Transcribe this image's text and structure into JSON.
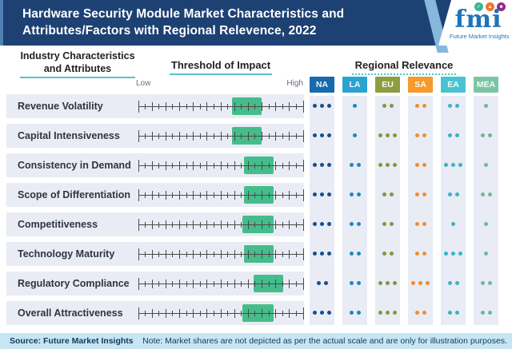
{
  "header": {
    "title": "Hardware Security Module Market Characteristics and Attributes/Factors with Regional Relevence, 2022",
    "logo": {
      "brand": "fmi",
      "tagline": "Future Market Insights"
    }
  },
  "columns": {
    "attributes_header": "Industry Characteristics and Attributes",
    "threshold_header": "Threshold of Impact",
    "regional_header": "Regional Relevance",
    "low_label": "Low",
    "high_label": "High"
  },
  "chart_data": {
    "type": "table",
    "title": "Hardware Security Module Market Characteristics and Attributes/Factors with Regional Relevence, 2022",
    "impact_axis": {
      "low_label": "Low",
      "high_label": "High",
      "range": [
        0,
        1
      ]
    },
    "relevance_scale": "dot count 1 (low) to 3 (high)",
    "regions": [
      {
        "code": "NA",
        "tag_color": "#166aad",
        "dot_color": "#15508d"
      },
      {
        "code": "LA",
        "tag_color": "#2ba3d1",
        "dot_color": "#1f86c2"
      },
      {
        "code": "EU",
        "tag_color": "#8c9e3f",
        "dot_color": "#85963c"
      },
      {
        "code": "SA",
        "tag_color": "#f59a2d",
        "dot_color": "#ee8f2b"
      },
      {
        "code": "EA",
        "tag_color": "#49c3d3",
        "dot_color": "#38b3c4"
      },
      {
        "code": "MEA",
        "tag_color": "#7ac6a4",
        "dot_color": "#68bb96"
      }
    ],
    "rows": [
      {
        "label": "Revenue Volatility",
        "impact_low": 0.57,
        "impact_high": 0.75,
        "relevance": [
          3,
          1,
          2,
          2,
          2,
          1
        ]
      },
      {
        "label": "Capital Intensiveness",
        "impact_low": 0.57,
        "impact_high": 0.75,
        "relevance": [
          3,
          1,
          3,
          2,
          2,
          2
        ]
      },
      {
        "label": "Consistency in Demand",
        "impact_low": 0.64,
        "impact_high": 0.82,
        "relevance": [
          3,
          2,
          3,
          2,
          3,
          1
        ]
      },
      {
        "label": "Scope of Differentiation",
        "impact_low": 0.64,
        "impact_high": 0.82,
        "relevance": [
          3,
          2,
          2,
          2,
          2,
          2
        ]
      },
      {
        "label": "Competitiveness",
        "impact_low": 0.63,
        "impact_high": 0.82,
        "relevance": [
          3,
          2,
          2,
          2,
          1,
          1
        ]
      },
      {
        "label": "Technology Maturity",
        "impact_low": 0.64,
        "impact_high": 0.82,
        "relevance": [
          3,
          2,
          2,
          2,
          3,
          1
        ]
      },
      {
        "label": "Regulatory Compliance",
        "impact_low": 0.7,
        "impact_high": 0.88,
        "relevance": [
          2,
          2,
          3,
          3,
          2,
          2
        ]
      },
      {
        "label": "Overall Attractiveness",
        "impact_low": 0.63,
        "impact_high": 0.82,
        "relevance": [
          3,
          2,
          3,
          2,
          2,
          2
        ]
      }
    ]
  },
  "footer": {
    "source": "Source: Future Market Insights",
    "note": "Note: Market shares are not depicted as per the actual scale and are only for illustration purposes."
  },
  "theme": {
    "header_bg": "#1d4173",
    "header_accent": "#4f7fb3",
    "impact_box_color": "#3bba85",
    "band_color": "#e9ecf5",
    "underline_color": "#57c4c8",
    "footer_bg": "#c5e6f2",
    "logo_blue": "#1b75bb"
  }
}
